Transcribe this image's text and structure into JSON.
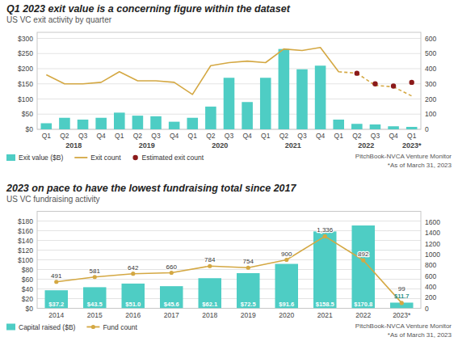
{
  "chart_data": [
    {
      "type": "bar",
      "title": "Q1 2023 exit value is a concerning figure within the dataset",
      "subtitle": "US VC exit activity by quarter",
      "categories": [
        "Q1",
        "Q2",
        "Q3",
        "Q4",
        "Q1",
        "Q2",
        "Q3",
        "Q4",
        "Q1",
        "Q2",
        "Q3",
        "Q4",
        "Q1",
        "Q2",
        "Q3",
        "Q4",
        "Q1",
        "Q2",
        "Q3",
        "Q4",
        "Q1"
      ],
      "groups": [
        "2018",
        "2019",
        "2020",
        "2021",
        "2022",
        "2023*"
      ],
      "series": [
        {
          "name": "Exit value ($B)",
          "type": "bar",
          "color": "#4ecdc4",
          "values": [
            20,
            38,
            32,
            38,
            55,
            45,
            43,
            25,
            38,
            75,
            170,
            90,
            170,
            265,
            198,
            210,
            32,
            18,
            16,
            10,
            8
          ]
        },
        {
          "name": "Exit count",
          "type": "line",
          "axis": "y2",
          "color": "#d4a843",
          "values": [
            360,
            300,
            300,
            310,
            380,
            320,
            320,
            310,
            230,
            420,
            440,
            450,
            440,
            530,
            520,
            540,
            380,
            370,
            290,
            280,
            220
          ]
        },
        {
          "name": "Estimated exit count",
          "type": "scatter",
          "axis": "y2",
          "color": "#8b1a1a",
          "marker": "circle",
          "values": [
            null,
            null,
            null,
            null,
            null,
            null,
            null,
            null,
            null,
            null,
            null,
            null,
            null,
            null,
            null,
            null,
            null,
            370,
            300,
            285,
            310
          ]
        }
      ],
      "ylim": [
        0,
        320
      ],
      "yticks": [
        {
          "value": 0,
          "label": "$0"
        },
        {
          "value": 50,
          "label": "$50"
        },
        {
          "value": 100,
          "label": "$100"
        },
        {
          "value": 150,
          "label": "$150"
        },
        {
          "value": 200,
          "label": "$200"
        },
        {
          "value": 250,
          "label": "$250"
        },
        {
          "value": 300,
          "label": "$300"
        }
      ],
      "y2lim": [
        0,
        640
      ],
      "y2ticks": [
        0,
        100,
        200,
        300,
        400,
        500,
        600
      ],
      "grid": true,
      "legend": "bottom",
      "source": "PitchBook-NVCA Venture Monitor",
      "note": "*As of March 31, 2023"
    },
    {
      "type": "bar",
      "title": "2023 on pace to have the lowest fundraising total since 2017",
      "subtitle": "US VC fundraising activity",
      "categories": [
        "2014",
        "2015",
        "2016",
        "2017",
        "2018",
        "2019",
        "2020",
        "2021",
        "2022",
        "2023*"
      ],
      "series": [
        {
          "name": "Capital raised ($B)",
          "type": "bar",
          "color": "#4ecdc4",
          "data_labels": true,
          "values": [
            37.2,
            43.5,
            51.0,
            45.6,
            62.1,
            72.5,
            91.6,
            158.5,
            170.8,
            11.7
          ],
          "value_labels": [
            "$37.2",
            "$43.5",
            "$51.0",
            "$45.6",
            "$62.1",
            "$72.5",
            "$91.6",
            "$158.5",
            "$170.8",
            "$11.7"
          ]
        },
        {
          "name": "Fund count",
          "type": "line",
          "axis": "y2",
          "color": "#d4a843",
          "marker": "circle",
          "data_labels": true,
          "values": [
            491,
            581,
            642,
            660,
            784,
            754,
            900,
            1336,
            892,
            99
          ],
          "value_labels": [
            "491",
            "581",
            "642",
            "660",
            "784",
            "754",
            "900",
            "1,336",
            "892",
            "99"
          ]
        }
      ],
      "ylim": [
        0,
        200
      ],
      "yticks": [
        {
          "value": 0,
          "label": "$0"
        },
        {
          "value": 20,
          "label": "$20"
        },
        {
          "value": 40,
          "label": "$40"
        },
        {
          "value": 60,
          "label": "$60"
        },
        {
          "value": 80,
          "label": "$80"
        },
        {
          "value": 100,
          "label": "$100"
        },
        {
          "value": 120,
          "label": "$120"
        },
        {
          "value": 140,
          "label": "$140"
        },
        {
          "value": 160,
          "label": "$160"
        },
        {
          "value": 180,
          "label": "$180"
        }
      ],
      "y2lim": [
        0,
        1800
      ],
      "y2ticks": [
        0,
        200,
        400,
        600,
        800,
        1000,
        1200,
        1400,
        1600
      ],
      "grid": true,
      "legend": "bottom",
      "source": "PitchBook-NVCA Venture Monitor",
      "note": "*As of March 31, 2023"
    }
  ]
}
